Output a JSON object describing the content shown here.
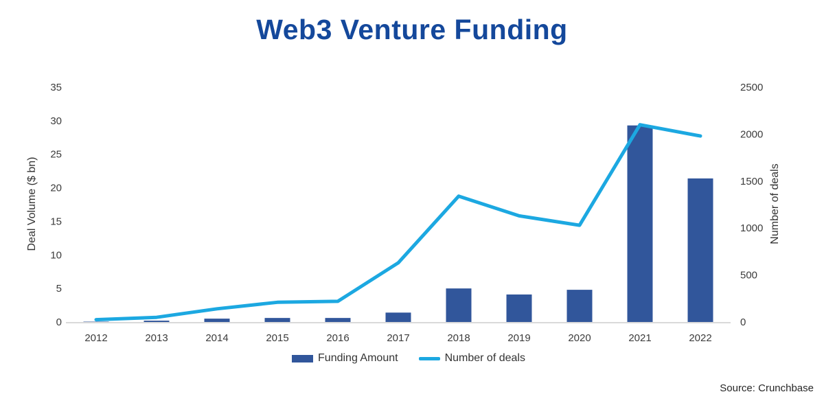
{
  "title": "Web3 Venture Funding",
  "source_note": "Source: Crunchbase",
  "colors": {
    "title": "#14489B",
    "bar": "#31569B",
    "line": "#1CA8E1",
    "axis_text": "#3B3B3B",
    "axis_line": "#D9D9D9"
  },
  "legend": {
    "items": [
      {
        "label": "Funding Amount",
        "swatch": "bar",
        "color": "#31569B"
      },
      {
        "label": "Number of deals",
        "swatch": "line",
        "color": "#1CA8E1"
      }
    ]
  },
  "chart_data": {
    "type": "combo (bar + line, dual axis)",
    "title": "Web3 Venture Funding",
    "categories": [
      "2012",
      "2013",
      "2014",
      "2015",
      "2016",
      "2017",
      "2018",
      "2019",
      "2020",
      "2021",
      "2022"
    ],
    "series": [
      {
        "name": "Funding Amount",
        "type": "bar",
        "axis": "left",
        "color": "#31569B",
        "values": [
          0.05,
          0.2,
          0.5,
          0.6,
          0.6,
          1.4,
          5.0,
          4.1,
          4.8,
          29.3,
          21.4
        ]
      },
      {
        "name": "Number of deals",
        "type": "line",
        "axis": "right",
        "color": "#1CA8E1",
        "values": [
          25,
          50,
          140,
          210,
          220,
          630,
          1340,
          1130,
          1030,
          2100,
          1980
        ]
      }
    ],
    "left_axis": {
      "title": "Deal Volume ($ bn)",
      "min": 0,
      "max": 35,
      "step": 5,
      "ticks": [
        0,
        5,
        10,
        15,
        20,
        25,
        30,
        35
      ]
    },
    "right_axis": {
      "title": "Number of deals",
      "min": 0,
      "max": 2500,
      "step": 500,
      "ticks": [
        0,
        500,
        1000,
        1500,
        2000,
        2500
      ]
    },
    "grid": false,
    "legend_position": "bottom"
  }
}
